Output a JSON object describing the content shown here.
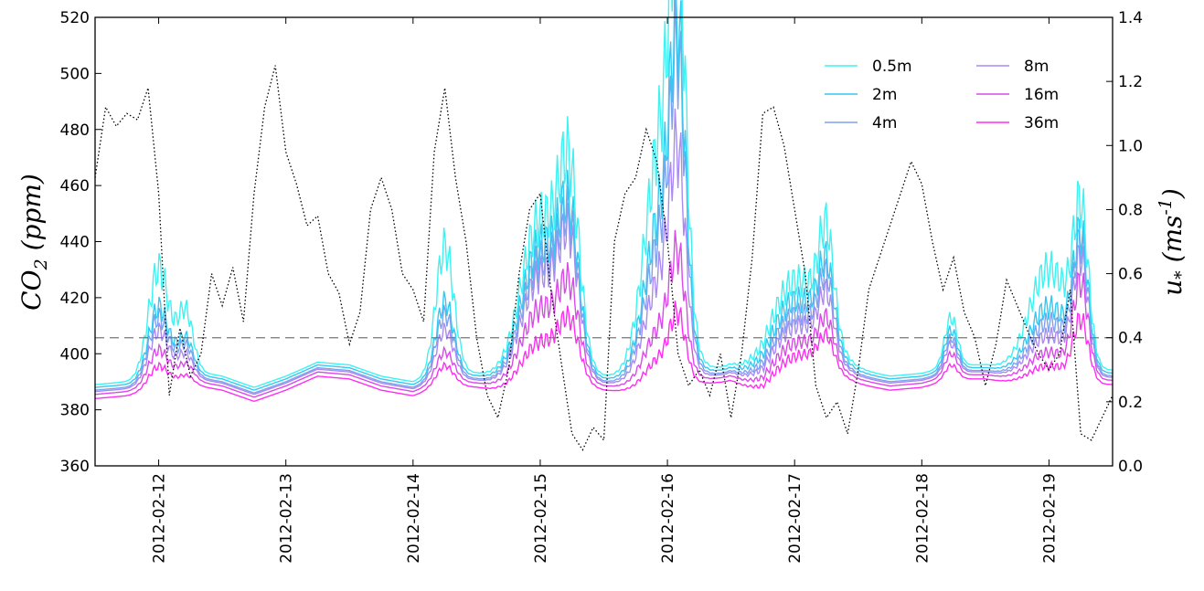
{
  "chart_data": {
    "type": "line",
    "title": "",
    "xlabel": "",
    "ylabel": "CO2 (ppm)",
    "ylabel_right": "u* (ms-1)",
    "x_start": "2012-02-11T12:00",
    "x_end": "2012-02-19T12:00",
    "xticks": [
      "2012-02-12",
      "2012-02-13",
      "2012-02-14",
      "2012-02-15",
      "2012-02-16",
      "2012-02-17",
      "2012-02-18",
      "2012-02-19"
    ],
    "ylim": [
      360,
      520
    ],
    "yticks": [
      360,
      380,
      400,
      420,
      440,
      460,
      480,
      500,
      520
    ],
    "ylim_right": [
      0.0,
      1.4
    ],
    "yticks_right": [
      "0.0",
      "0.2",
      "0.4",
      "0.6",
      "0.8",
      "1.0",
      "1.2",
      "1.4"
    ],
    "reference_line": {
      "axis": "right",
      "value": 0.4,
      "style": "dashed",
      "color": "#777777"
    },
    "grid": false,
    "legend_placement": "top-right",
    "series": [
      {
        "name": "0.5m",
        "color": "#3ef2f2",
        "offset": 2.0,
        "peaks": [
          {
            "center": "2012-02-12T00:00",
            "amp": 45,
            "width": 0.08
          },
          {
            "center": "2012-02-12T05:00",
            "amp": 25,
            "width": 0.06
          },
          {
            "center": "2012-02-14T06:00",
            "amp": 52,
            "width": 0.07
          },
          {
            "center": "2012-02-15T00:00",
            "amp": 65,
            "width": 0.15
          },
          {
            "center": "2012-02-15T05:30",
            "amp": 70,
            "width": 0.08
          },
          {
            "center": "2012-02-15T23:00",
            "amp": 100,
            "width": 0.13
          },
          {
            "center": "2012-02-16T02:00",
            "amp": 130,
            "width": 0.06
          },
          {
            "center": "2012-02-17T00:00",
            "amp": 40,
            "width": 0.2
          },
          {
            "center": "2012-02-17T06:00",
            "amp": 40,
            "width": 0.06
          },
          {
            "center": "2012-02-18T05:30",
            "amp": 20,
            "width": 0.05
          },
          {
            "center": "2012-02-19T00:00",
            "amp": 45,
            "width": 0.15
          },
          {
            "center": "2012-02-19T06:00",
            "amp": 60,
            "width": 0.06
          }
        ]
      },
      {
        "name": "2m",
        "color": "#35c8f0",
        "offset": 1.0,
        "peaks": [
          {
            "center": "2012-02-12T00:00",
            "amp": 30,
            "width": 0.08
          },
          {
            "center": "2012-02-12T05:00",
            "amp": 15,
            "width": 0.06
          },
          {
            "center": "2012-02-14T06:00",
            "amp": 30,
            "width": 0.07
          },
          {
            "center": "2012-02-15T00:00",
            "amp": 55,
            "width": 0.15
          },
          {
            "center": "2012-02-15T05:30",
            "amp": 55,
            "width": 0.08
          },
          {
            "center": "2012-02-15T23:00",
            "amp": 70,
            "width": 0.13
          },
          {
            "center": "2012-02-16T02:00",
            "amp": 105,
            "width": 0.06
          },
          {
            "center": "2012-02-17T00:00",
            "amp": 33,
            "width": 0.2
          },
          {
            "center": "2012-02-17T06:00",
            "amp": 30,
            "width": 0.06
          },
          {
            "center": "2012-02-18T05:30",
            "amp": 16,
            "width": 0.05
          },
          {
            "center": "2012-02-19T00:00",
            "amp": 30,
            "width": 0.15
          },
          {
            "center": "2012-02-19T06:00",
            "amp": 52,
            "width": 0.06
          }
        ]
      },
      {
        "name": "4m",
        "color": "#7fa2ee",
        "offset": 0.0,
        "peaks": [
          {
            "center": "2012-02-12T00:00",
            "amp": 27,
            "width": 0.08
          },
          {
            "center": "2012-02-12T05:00",
            "amp": 13,
            "width": 0.06
          },
          {
            "center": "2012-02-14T06:00",
            "amp": 26,
            "width": 0.07
          },
          {
            "center": "2012-02-15T00:00",
            "amp": 50,
            "width": 0.15
          },
          {
            "center": "2012-02-15T05:30",
            "amp": 52,
            "width": 0.08
          },
          {
            "center": "2012-02-15T23:00",
            "amp": 60,
            "width": 0.13
          },
          {
            "center": "2012-02-16T02:00",
            "amp": 100,
            "width": 0.06
          },
          {
            "center": "2012-02-17T00:00",
            "amp": 28,
            "width": 0.2
          },
          {
            "center": "2012-02-17T06:00",
            "amp": 27,
            "width": 0.06
          },
          {
            "center": "2012-02-18T05:30",
            "amp": 14,
            "width": 0.05
          },
          {
            "center": "2012-02-19T00:00",
            "amp": 25,
            "width": 0.15
          },
          {
            "center": "2012-02-19T06:00",
            "amp": 50,
            "width": 0.06
          }
        ]
      },
      {
        "name": "8m",
        "color": "#a98af2",
        "offset": -0.5,
        "peaks": [
          {
            "center": "2012-02-12T00:00",
            "amp": 22,
            "width": 0.08
          },
          {
            "center": "2012-02-12T05:00",
            "amp": 10,
            "width": 0.06
          },
          {
            "center": "2012-02-14T06:00",
            "amp": 20,
            "width": 0.07
          },
          {
            "center": "2012-02-15T00:00",
            "amp": 45,
            "width": 0.15
          },
          {
            "center": "2012-02-15T05:30",
            "amp": 48,
            "width": 0.08
          },
          {
            "center": "2012-02-15T23:00",
            "amp": 45,
            "width": 0.13
          },
          {
            "center": "2012-02-16T02:00",
            "amp": 70,
            "width": 0.06
          },
          {
            "center": "2012-02-17T00:00",
            "amp": 24,
            "width": 0.2
          },
          {
            "center": "2012-02-17T06:00",
            "amp": 22,
            "width": 0.06
          },
          {
            "center": "2012-02-18T05:30",
            "amp": 12,
            "width": 0.05
          },
          {
            "center": "2012-02-19T00:00",
            "amp": 20,
            "width": 0.15
          },
          {
            "center": "2012-02-19T06:00",
            "amp": 46,
            "width": 0.06
          }
        ]
      },
      {
        "name": "16m",
        "color": "#d94ae8",
        "offset": -1.5,
        "peaks": [
          {
            "center": "2012-02-12T00:00",
            "amp": 15,
            "width": 0.08
          },
          {
            "center": "2012-02-12T05:00",
            "amp": 7,
            "width": 0.06
          },
          {
            "center": "2012-02-14T06:00",
            "amp": 12,
            "width": 0.07
          },
          {
            "center": "2012-02-15T00:00",
            "amp": 32,
            "width": 0.15
          },
          {
            "center": "2012-02-15T05:30",
            "amp": 32,
            "width": 0.08
          },
          {
            "center": "2012-02-15T23:00",
            "amp": 25,
            "width": 0.13
          },
          {
            "center": "2012-02-16T02:00",
            "amp": 40,
            "width": 0.06
          },
          {
            "center": "2012-02-17T00:00",
            "amp": 18,
            "width": 0.2
          },
          {
            "center": "2012-02-17T06:00",
            "amp": 15,
            "width": 0.06
          },
          {
            "center": "2012-02-18T05:30",
            "amp": 9,
            "width": 0.05
          },
          {
            "center": "2012-02-19T00:00",
            "amp": 14,
            "width": 0.15
          },
          {
            "center": "2012-02-19T06:00",
            "amp": 38,
            "width": 0.06
          }
        ]
      },
      {
        "name": "36m",
        "color": "#ff2df2",
        "offset": -3.0,
        "peaks": [
          {
            "center": "2012-02-12T00:00",
            "amp": 10,
            "width": 0.08
          },
          {
            "center": "2012-02-12T05:00",
            "amp": 4,
            "width": 0.06
          },
          {
            "center": "2012-02-14T06:00",
            "amp": 8,
            "width": 0.07
          },
          {
            "center": "2012-02-15T00:00",
            "amp": 20,
            "width": 0.15
          },
          {
            "center": "2012-02-15T05:30",
            "amp": 22,
            "width": 0.08
          },
          {
            "center": "2012-02-15T23:00",
            "amp": 14,
            "width": 0.13
          },
          {
            "center": "2012-02-16T02:00",
            "amp": 23,
            "width": 0.06
          },
          {
            "center": "2012-02-17T00:00",
            "amp": 14,
            "width": 0.2
          },
          {
            "center": "2012-02-17T06:00",
            "amp": 11,
            "width": 0.06
          },
          {
            "center": "2012-02-18T05:30",
            "amp": 6,
            "width": 0.05
          },
          {
            "center": "2012-02-19T00:00",
            "amp": 10,
            "width": 0.15
          },
          {
            "center": "2012-02-19T06:00",
            "amp": 25,
            "width": 0.06
          }
        ]
      }
    ],
    "baseline_co2": {
      "x": [
        "2012-02-11T12:00",
        "2012-02-11T18:00",
        "2012-02-12T00:00",
        "2012-02-12T06:00",
        "2012-02-12T12:00",
        "2012-02-12T18:00",
        "2012-02-13T00:00",
        "2012-02-13T06:00",
        "2012-02-13T12:00",
        "2012-02-13T18:00",
        "2012-02-14T00:00",
        "2012-02-14T06:00",
        "2012-02-14T12:00",
        "2012-02-14T18:00",
        "2012-02-15T00:00",
        "2012-02-15T06:00",
        "2012-02-15T12:00",
        "2012-02-15T18:00",
        "2012-02-16T00:00",
        "2012-02-16T06:00",
        "2012-02-16T12:00",
        "2012-02-16T18:00",
        "2012-02-17T00:00",
        "2012-02-17T06:00",
        "2012-02-17T12:00",
        "2012-02-17T18:00",
        "2012-02-18T00:00",
        "2012-02-18T06:00",
        "2012-02-18T12:00",
        "2012-02-18T18:00",
        "2012-02-19T00:00",
        "2012-02-19T06:00",
        "2012-02-19T12:00"
      ],
      "y": [
        387,
        388,
        390,
        392,
        390,
        386,
        390,
        395,
        394,
        390,
        388,
        392,
        391,
        389,
        390,
        392,
        390,
        389,
        390,
        392,
        393,
        386,
        390,
        395,
        392,
        390,
        391,
        394,
        394,
        392,
        390,
        392,
        392
      ]
    },
    "ustar": {
      "axis": "right",
      "style": "dotted",
      "color": "#000000",
      "x": [
        "2012-02-11T12:00",
        "2012-02-11T14:00",
        "2012-02-11T16:00",
        "2012-02-11T18:00",
        "2012-02-11T20:00",
        "2012-02-11T22:00",
        "2012-02-12T00:00",
        "2012-02-12T02:00",
        "2012-02-12T04:00",
        "2012-02-12T06:00",
        "2012-02-12T08:00",
        "2012-02-12T10:00",
        "2012-02-12T12:00",
        "2012-02-12T14:00",
        "2012-02-12T16:00",
        "2012-02-12T18:00",
        "2012-02-12T20:00",
        "2012-02-12T22:00",
        "2012-02-13T00:00",
        "2012-02-13T02:00",
        "2012-02-13T04:00",
        "2012-02-13T06:00",
        "2012-02-13T08:00",
        "2012-02-13T10:00",
        "2012-02-13T12:00",
        "2012-02-13T14:00",
        "2012-02-13T16:00",
        "2012-02-13T18:00",
        "2012-02-13T20:00",
        "2012-02-13T22:00",
        "2012-02-14T00:00",
        "2012-02-14T02:00",
        "2012-02-14T04:00",
        "2012-02-14T06:00",
        "2012-02-14T08:00",
        "2012-02-14T10:00",
        "2012-02-14T12:00",
        "2012-02-14T14:00",
        "2012-02-14T16:00",
        "2012-02-14T18:00",
        "2012-02-14T20:00",
        "2012-02-14T22:00",
        "2012-02-15T00:00",
        "2012-02-15T02:00",
        "2012-02-15T04:00",
        "2012-02-15T06:00",
        "2012-02-15T08:00",
        "2012-02-15T10:00",
        "2012-02-15T12:00",
        "2012-02-15T14:00",
        "2012-02-15T16:00",
        "2012-02-15T18:00",
        "2012-02-15T20:00",
        "2012-02-15T22:00",
        "2012-02-16T00:00",
        "2012-02-16T02:00",
        "2012-02-16T04:00",
        "2012-02-16T06:00",
        "2012-02-16T08:00",
        "2012-02-16T10:00",
        "2012-02-16T12:00",
        "2012-02-16T14:00",
        "2012-02-16T16:00",
        "2012-02-16T18:00",
        "2012-02-16T20:00",
        "2012-02-16T22:00",
        "2012-02-17T00:00",
        "2012-02-17T02:00",
        "2012-02-17T04:00",
        "2012-02-17T06:00",
        "2012-02-17T08:00",
        "2012-02-17T10:00",
        "2012-02-17T12:00",
        "2012-02-17T14:00",
        "2012-02-17T16:00",
        "2012-02-17T18:00",
        "2012-02-17T20:00",
        "2012-02-17T22:00",
        "2012-02-18T00:00",
        "2012-02-18T02:00",
        "2012-02-18T04:00",
        "2012-02-18T06:00",
        "2012-02-18T08:00",
        "2012-02-18T10:00",
        "2012-02-18T12:00",
        "2012-02-18T14:00",
        "2012-02-18T16:00",
        "2012-02-18T18:00",
        "2012-02-18T20:00",
        "2012-02-18T22:00",
        "2012-02-19T00:00",
        "2012-02-19T02:00",
        "2012-02-19T04:00",
        "2012-02-19T06:00",
        "2012-02-19T08:00",
        "2012-02-19T10:00",
        "2012-02-19T12:00"
      ],
      "y": [
        0.9,
        1.12,
        1.06,
        1.1,
        1.08,
        1.18,
        0.85,
        0.22,
        0.43,
        0.28,
        0.35,
        0.6,
        0.5,
        0.62,
        0.45,
        0.85,
        1.12,
        1.25,
        0.98,
        0.88,
        0.75,
        0.78,
        0.6,
        0.54,
        0.38,
        0.48,
        0.8,
        0.9,
        0.8,
        0.6,
        0.55,
        0.45,
        0.98,
        1.18,
        0.9,
        0.7,
        0.4,
        0.22,
        0.15,
        0.3,
        0.6,
        0.8,
        0.85,
        0.55,
        0.32,
        0.1,
        0.05,
        0.12,
        0.08,
        0.7,
        0.85,
        0.9,
        1.05,
        0.95,
        0.7,
        0.35,
        0.25,
        0.3,
        0.22,
        0.35,
        0.15,
        0.35,
        0.65,
        1.1,
        1.12,
        1.0,
        0.8,
        0.6,
        0.25,
        0.15,
        0.2,
        0.1,
        0.3,
        0.55,
        0.65,
        0.75,
        0.85,
        0.95,
        0.88,
        0.7,
        0.55,
        0.65,
        0.48,
        0.4,
        0.25,
        0.38,
        0.58,
        0.5,
        0.42,
        0.35,
        0.3,
        0.35,
        0.55,
        0.1,
        0.08,
        0.15,
        0.22
      ]
    }
  }
}
